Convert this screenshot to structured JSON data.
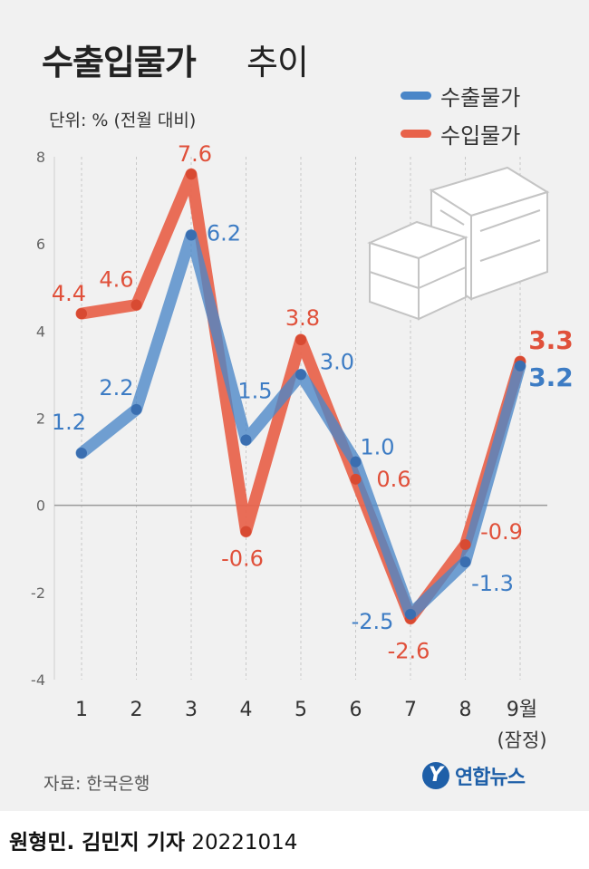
{
  "title_bold": "수출입물가",
  "title_rest": "추이",
  "unit_label": "단위: % (전월 대비)",
  "source": "자료: 한국은행",
  "logo_text": "연합뉴스",
  "credit_name": "원형민. 김민지 기자",
  "credit_date": "20221014",
  "colors": {
    "export": "#4a86c8",
    "import": "#e8624a",
    "export_label": "#3d7cc4",
    "import_label": "#e0503a"
  },
  "chart_data": {
    "type": "line",
    "unit": "%",
    "categories": [
      "1",
      "2",
      "3",
      "4",
      "5",
      "6",
      "7",
      "8",
      "9월"
    ],
    "category_notes": [
      "",
      "",
      "",
      "",
      "",
      "",
      "",
      "",
      "(잠정)"
    ],
    "ylim": [
      -4,
      8
    ],
    "yticks": [
      "8",
      "6",
      "4",
      "2",
      "0",
      "-2",
      "-4"
    ],
    "ytick_values": [
      8,
      6,
      4,
      2,
      0,
      -2,
      -4
    ],
    "grid": "vertical dashed per category; zero baseline solid",
    "legend_position": "top-right",
    "series": [
      {
        "name": "수출물가",
        "values": [
          1.2,
          2.2,
          6.2,
          1.5,
          3.0,
          1.0,
          -2.5,
          -1.3,
          3.2
        ],
        "labels": [
          "1.2",
          "2.2",
          "6.2",
          "1.5",
          "3.0",
          "1.0",
          "-2.5",
          "-1.3",
          "3.2"
        ]
      },
      {
        "name": "수입물가",
        "values": [
          4.4,
          4.6,
          7.6,
          -0.6,
          3.8,
          0.6,
          -2.6,
          -0.9,
          3.3
        ],
        "labels": [
          "4.4",
          "4.6",
          "7.6",
          "-0.6",
          "3.8",
          "0.6",
          "-2.6",
          "-0.9",
          "3.3"
        ]
      }
    ]
  }
}
